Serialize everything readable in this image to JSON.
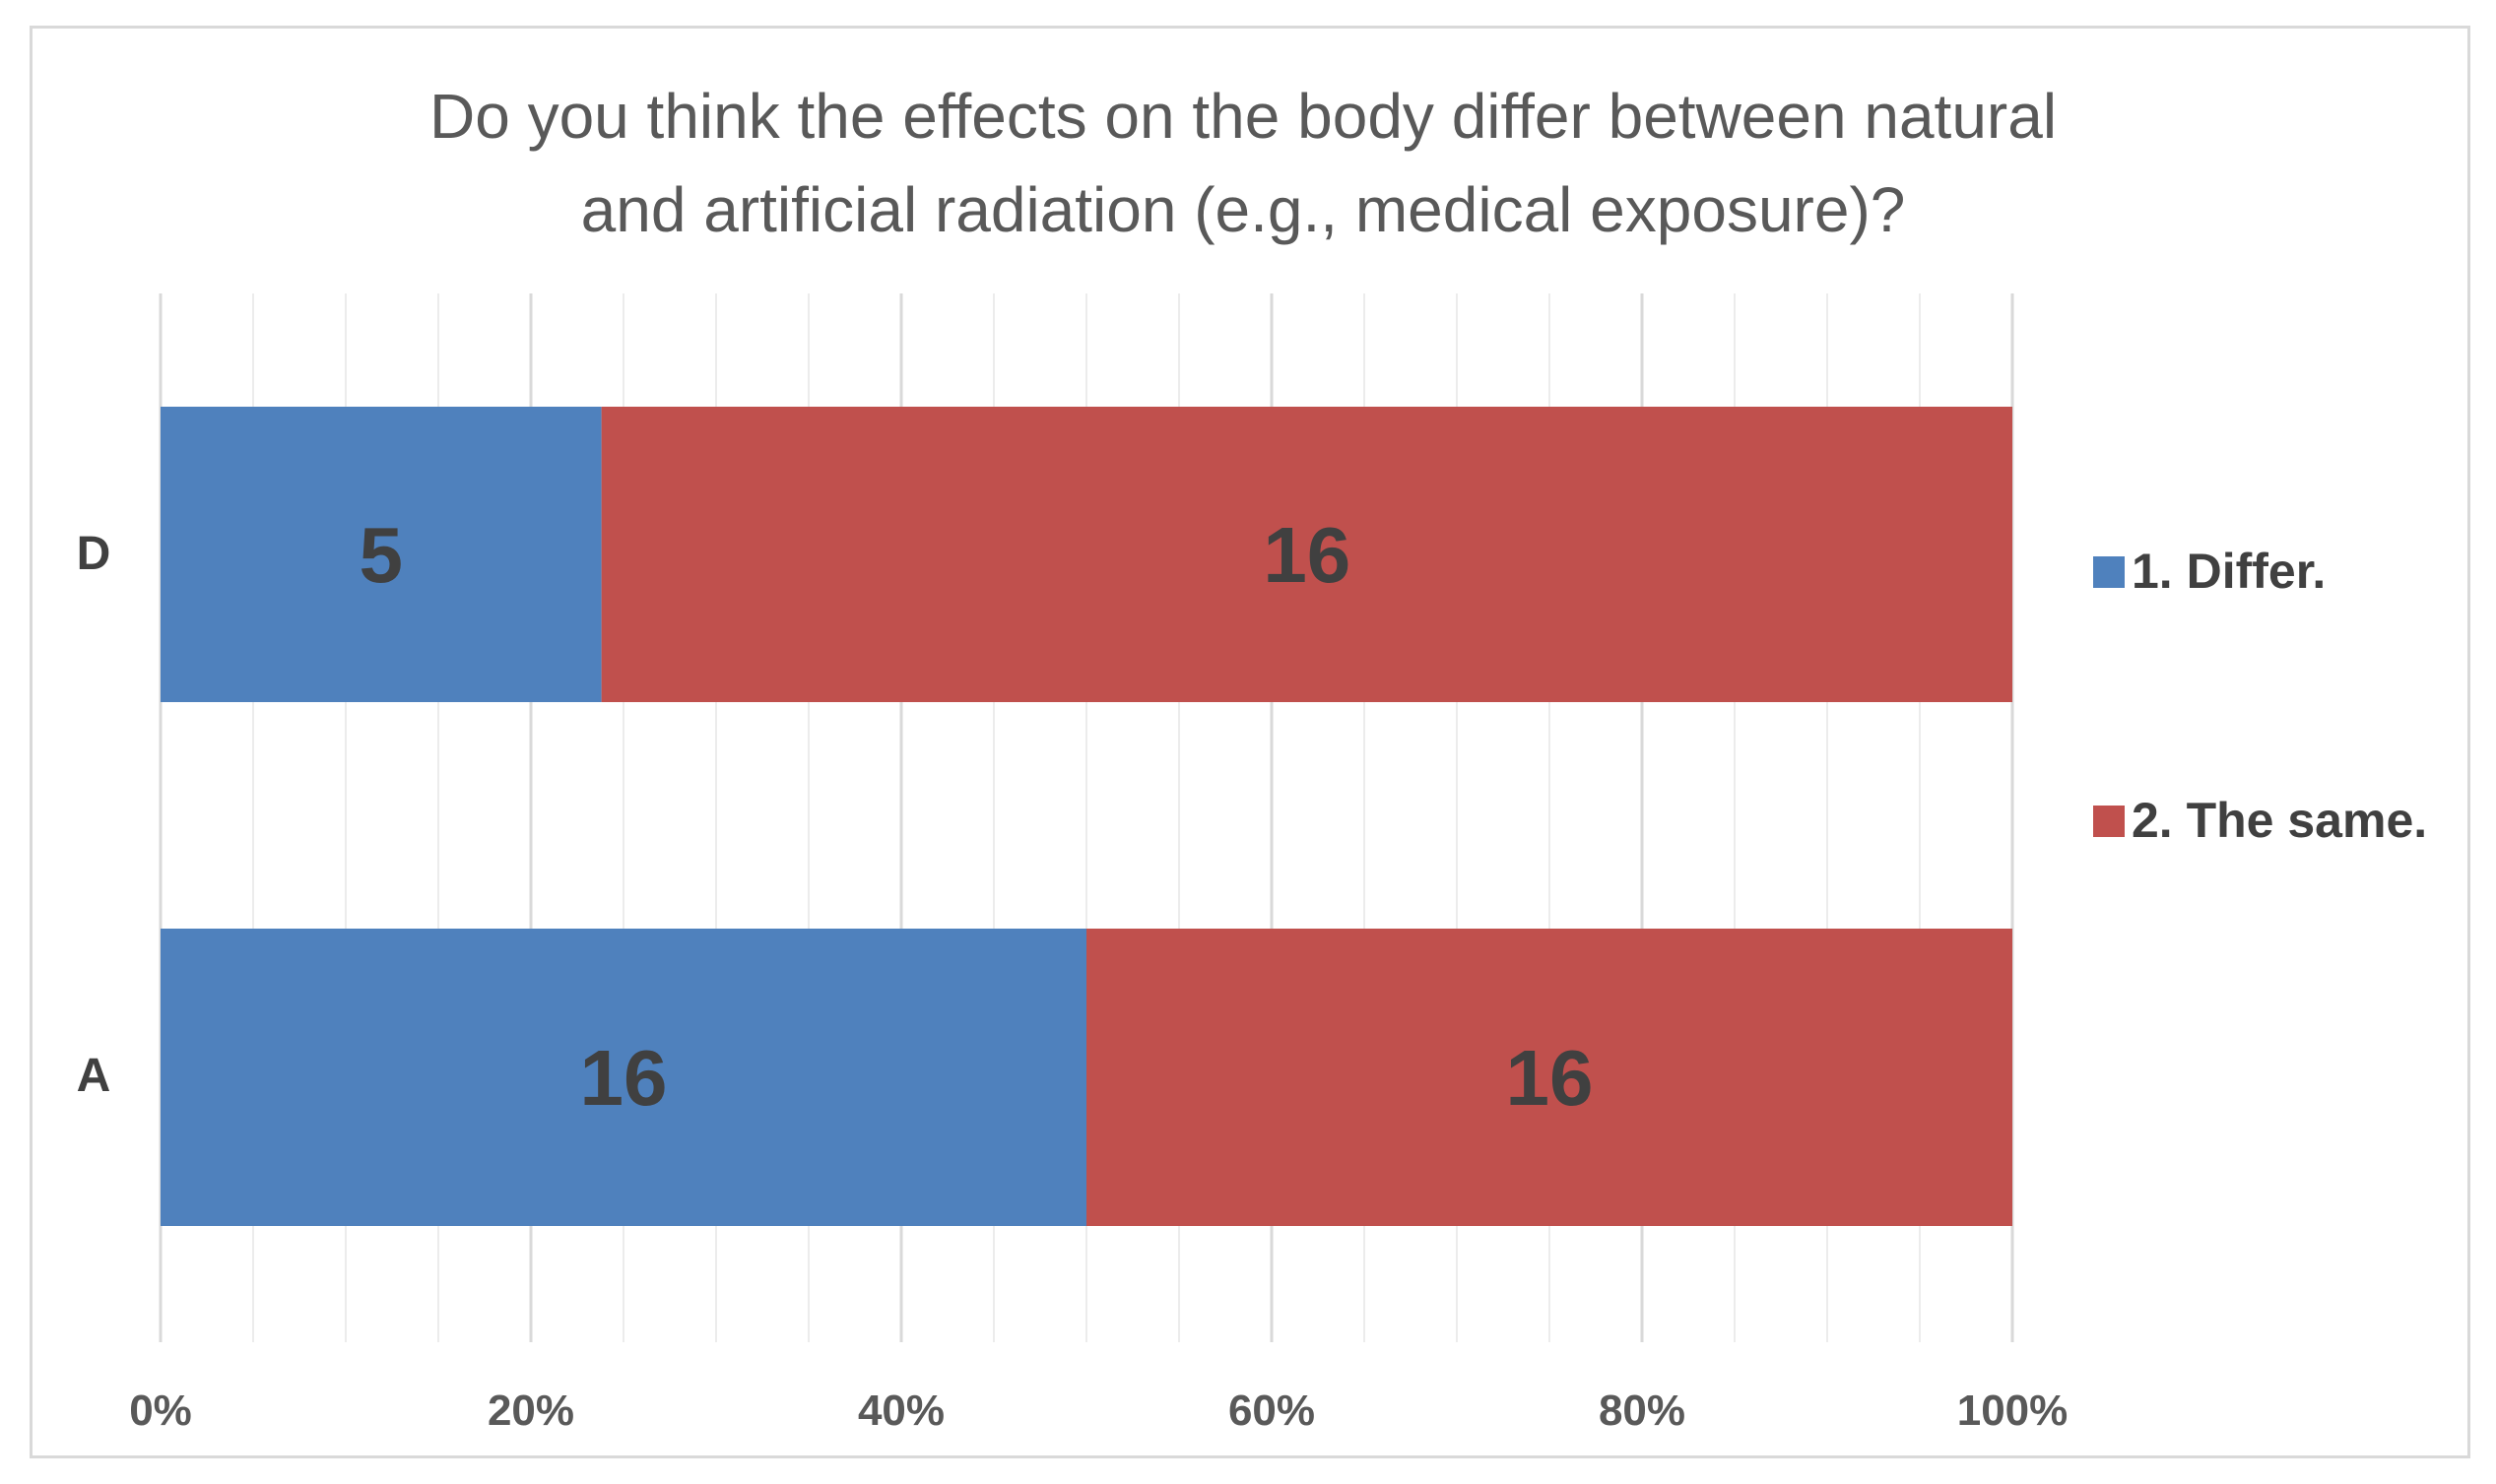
{
  "chart_data": {
    "type": "bar",
    "orientation": "horizontal",
    "stacked": "percent",
    "title": "Do you think the effects on the body differ between natural and artificial radiation (e.g., medical exposure)?",
    "title_lines": [
      "Do you think the effects on the body differ between natural",
      "and artificial radiation (e.g., medical exposure)?"
    ],
    "categories": [
      "D",
      "A"
    ],
    "series": [
      {
        "name": "1. Differ.",
        "values": [
          5,
          16
        ],
        "color": "#4f81bd"
      },
      {
        "name": "2. The same.",
        "values": [
          16,
          16
        ],
        "color": "#c0504d"
      }
    ],
    "xlim": [
      0,
      100
    ],
    "xticks": [
      "0%",
      "20%",
      "40%",
      "60%",
      "80%",
      "100%"
    ],
    "grid": true,
    "legend_position": "right"
  }
}
